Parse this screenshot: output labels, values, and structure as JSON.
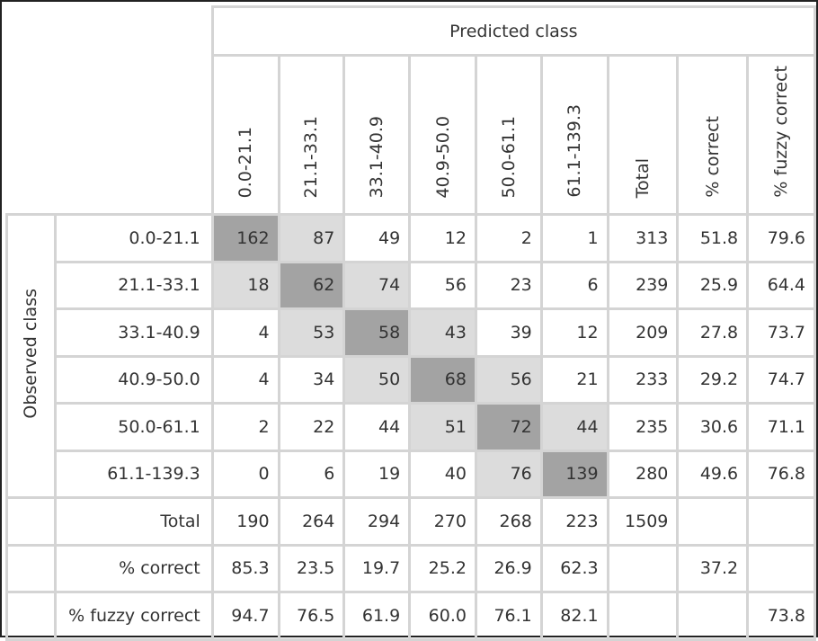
{
  "predicted_label": "Predicted class",
  "observed_label": "Observed class",
  "column_headers": [
    "0.0-21.1",
    "21.1-33.1",
    "33.1-40.9",
    "40.9-50.0",
    "50.0-61.1",
    "61.1-139.3",
    "Total",
    "% correct",
    "% fuzzy correct"
  ],
  "rows": [
    {
      "label": "0.0-21.1",
      "cells": [
        "162",
        "87",
        "49",
        "12",
        "2",
        "1",
        "313",
        "51.8",
        "79.6"
      ]
    },
    {
      "label": "21.1-33.1",
      "cells": [
        "18",
        "62",
        "74",
        "56",
        "23",
        "6",
        "239",
        "25.9",
        "64.4"
      ]
    },
    {
      "label": "33.1-40.9",
      "cells": [
        "4",
        "53",
        "58",
        "43",
        "39",
        "12",
        "209",
        "27.8",
        "73.7"
      ]
    },
    {
      "label": "40.9-50.0",
      "cells": [
        "4",
        "34",
        "50",
        "68",
        "56",
        "21",
        "233",
        "29.2",
        "74.7"
      ]
    },
    {
      "label": "50.0-61.1",
      "cells": [
        "2",
        "22",
        "44",
        "51",
        "72",
        "44",
        "235",
        "30.6",
        "71.1"
      ]
    },
    {
      "label": "61.1-139.3",
      "cells": [
        "0",
        "6",
        "19",
        "40",
        "76",
        "139",
        "280",
        "49.6",
        "76.8"
      ]
    },
    {
      "label": "Total",
      "cells": [
        "190",
        "264",
        "294",
        "270",
        "268",
        "223",
        "1509",
        "",
        ""
      ]
    },
    {
      "label": "% correct",
      "cells": [
        "85.3",
        "23.5",
        "19.7",
        "25.2",
        "26.9",
        "62.3",
        "",
        "37.2",
        ""
      ]
    },
    {
      "label": "% fuzzy correct",
      "cells": [
        "94.7",
        "76.5",
        "61.9",
        "60.0",
        "76.1",
        "82.1",
        "",
        "",
        "73.8"
      ]
    }
  ],
  "colors": {
    "diagonal": "#a3a3a3",
    "adjacent": "#dcdcdc",
    "grid": "#d4d4d4",
    "frame": "#222222"
  },
  "chart_data": {
    "type": "table",
    "title": "",
    "x_axis_label": "Predicted class",
    "y_axis_label": "Observed class",
    "classes": [
      "0.0-21.1",
      "21.1-33.1",
      "33.1-40.9",
      "40.9-50.0",
      "50.0-61.1",
      "61.1-139.3"
    ],
    "confusion_matrix": [
      [
        162,
        87,
        49,
        12,
        2,
        1
      ],
      [
        18,
        62,
        74,
        56,
        23,
        6
      ],
      [
        4,
        53,
        58,
        43,
        39,
        12
      ],
      [
        4,
        34,
        50,
        68,
        56,
        21
      ],
      [
        2,
        22,
        44,
        51,
        72,
        44
      ],
      [
        0,
        6,
        19,
        40,
        76,
        139
      ]
    ],
    "row_totals": [
      313,
      239,
      209,
      233,
      235,
      280
    ],
    "row_percent_correct": [
      51.8,
      25.9,
      27.8,
      29.2,
      30.6,
      49.6
    ],
    "row_percent_fuzzy_correct": [
      79.6,
      64.4,
      73.7,
      74.7,
      71.1,
      76.8
    ],
    "column_totals": [
      190,
      264,
      294,
      270,
      268,
      223
    ],
    "grand_total": 1509,
    "column_percent_correct": [
      85.3,
      23.5,
      19.7,
      25.2,
      26.9,
      62.3
    ],
    "column_percent_fuzzy_correct": [
      94.7,
      76.5,
      61.9,
      60.0,
      76.1,
      82.1
    ],
    "overall_percent_correct": 37.2,
    "overall_percent_fuzzy_correct": 73.8
  }
}
